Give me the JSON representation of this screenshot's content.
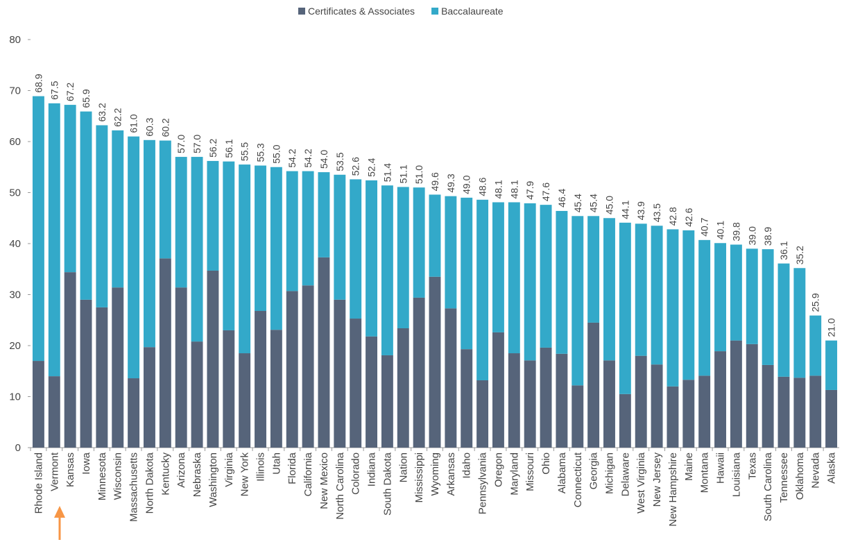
{
  "chart_data": {
    "type": "stacked_bar",
    "categories": [
      "Rhode Island",
      "Vermont",
      "Kansas",
      "Iowa",
      "Minnesota",
      "Wisconsin",
      "Massachusetts",
      "North Dakota",
      "Kentucky",
      "Arizona",
      "Nebraska",
      "Washington",
      "Virginia",
      "New York",
      "Illinois",
      "Utah",
      "Florida",
      "California",
      "New Mexico",
      "North Carolina",
      "Colorado",
      "Indiana",
      "South Dakota",
      "Nation",
      "Mississippi",
      "Wyoming",
      "Arkansas",
      "Idaho",
      "Pennsylvania",
      "Oregon",
      "Maryland",
      "Missouri",
      "Ohio",
      "Alabama",
      "Connecticut",
      "Georgia",
      "Michigan",
      "Delaware",
      "West Virginia",
      "New Jersey",
      "New Hampshire",
      "Maine",
      "Montana",
      "Hawaii",
      "Louisiana",
      "Texas",
      "South Carolina",
      "Tennessee",
      "Oklahoma",
      "Nevada",
      "Alaska"
    ],
    "series": [
      {
        "name": "Certificates & Associates",
        "color": "#56647a",
        "values": [
          17.0,
          14.0,
          34.4,
          29.0,
          27.5,
          31.4,
          13.6,
          19.7,
          37.1,
          31.4,
          20.8,
          34.7,
          23.0,
          18.5,
          26.8,
          23.1,
          30.7,
          31.8,
          37.3,
          29.0,
          25.3,
          21.8,
          18.1,
          23.4,
          29.4,
          33.5,
          27.3,
          19.3,
          13.2,
          22.6,
          18.5,
          17.1,
          19.6,
          18.4,
          12.2,
          24.5,
          17.1,
          10.5,
          18.0,
          16.3,
          12.0,
          13.3,
          14.1,
          18.9,
          21.0,
          20.3,
          16.2,
          13.9,
          13.7,
          14.1,
          11.3
        ]
      },
      {
        "name": "Baccalaureate",
        "color": "#33a9c9",
        "values": [
          51.9,
          53.5,
          32.8,
          36.9,
          35.7,
          30.8,
          47.4,
          40.6,
          23.1,
          25.6,
          36.2,
          21.5,
          33.1,
          37.0,
          28.5,
          31.9,
          23.5,
          22.4,
          16.7,
          24.5,
          27.3,
          30.6,
          33.3,
          27.7,
          21.6,
          16.1,
          22.0,
          29.7,
          35.4,
          25.5,
          29.6,
          30.8,
          28.0,
          28.0,
          33.2,
          20.9,
          27.9,
          33.6,
          25.9,
          27.2,
          30.8,
          29.3,
          26.6,
          21.2,
          18.8,
          18.7,
          22.7,
          22.2,
          21.5,
          11.8,
          9.7
        ]
      }
    ],
    "value_labels": [
      "68.9",
      "67.5",
      "67.2",
      "65.9",
      "63.2",
      "62.2",
      "61.0",
      "60.3",
      "60.2",
      "57.0",
      "57.0",
      "56.2",
      "56.1",
      "55.5",
      "55.3",
      "55.0",
      "54.2",
      "54.2",
      "54.0",
      "53.5",
      "52.6",
      "52.4",
      "51.4",
      "51.1",
      "51.0",
      "49.6",
      "49.3",
      "49.0",
      "48.6",
      "48.1",
      "48.1",
      "47.9",
      "47.6",
      "46.4",
      "45.4",
      "45.4",
      "45.0",
      "44.1",
      "43.9",
      "43.5",
      "42.8",
      "42.6",
      "40.7",
      "40.1",
      "39.8",
      "39.0",
      "38.9",
      "36.1",
      "35.2",
      "25.9",
      "21.0"
    ],
    "ylim": [
      0,
      80
    ],
    "yticks": [
      0,
      10,
      20,
      30,
      40,
      50,
      60,
      70,
      80
    ],
    "legend": "top"
  }
}
